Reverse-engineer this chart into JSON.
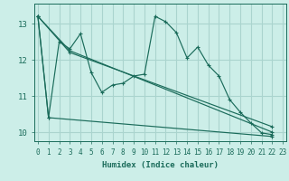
{
  "title": "",
  "xlabel": "Humidex (Indice chaleur)",
  "bg_color": "#cceee8",
  "grid_color": "#aad4ce",
  "line_color": "#1a6b5a",
  "xlim": [
    -0.3,
    23.3
  ],
  "ylim": [
    9.75,
    13.55
  ],
  "xticks": [
    0,
    1,
    2,
    3,
    4,
    5,
    6,
    7,
    8,
    9,
    10,
    11,
    12,
    13,
    14,
    15,
    16,
    17,
    18,
    19,
    20,
    21,
    22,
    23
  ],
  "yticks": [
    10,
    11,
    12,
    13
  ],
  "series": [
    {
      "x": [
        0,
        1,
        2,
        3,
        4,
        5,
        6,
        7,
        8,
        9,
        10,
        11,
        12,
        13,
        14,
        15,
        16,
        17,
        18,
        19,
        20,
        21,
        22
      ],
      "y": [
        13.2,
        10.4,
        12.5,
        12.3,
        12.72,
        11.65,
        11.1,
        11.3,
        11.35,
        11.55,
        11.6,
        13.2,
        13.05,
        12.75,
        12.05,
        12.35,
        11.85,
        11.55,
        10.9,
        10.55,
        10.25,
        9.98,
        9.93
      ]
    },
    {
      "x": [
        0,
        3,
        22
      ],
      "y": [
        13.2,
        12.25,
        10.0
      ]
    },
    {
      "x": [
        0,
        3,
        22
      ],
      "y": [
        13.2,
        12.2,
        10.15
      ]
    },
    {
      "x": [
        0,
        1,
        22
      ],
      "y": [
        13.2,
        10.4,
        9.88
      ]
    }
  ],
  "marker": "+"
}
